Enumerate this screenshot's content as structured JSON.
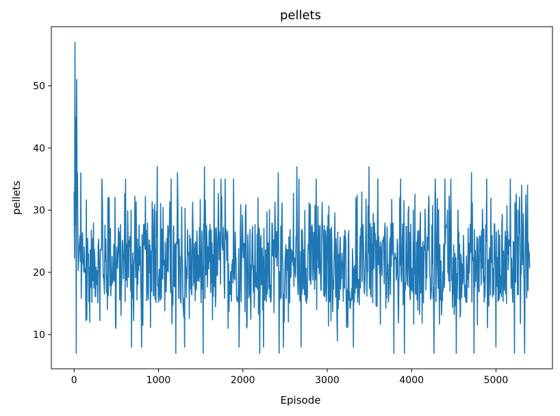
{
  "chart_data": {
    "type": "line",
    "title": "pellets",
    "xlabel": "Episode",
    "ylabel": "pellets",
    "xlim": [
      -270,
      5670
    ],
    "ylim": [
      4.5,
      59.5
    ],
    "xticks": [
      0,
      1000,
      2000,
      3000,
      4000,
      5000
    ],
    "yticks": [
      10,
      20,
      30,
      40,
      50
    ],
    "grid": false,
    "legend": "none",
    "color": "#1f77b4",
    "series": [
      {
        "x_start": 0,
        "x_end": 5400,
        "typical_range": [
          15,
          28
        ],
        "spike_points": [
          [
            0,
            33
          ],
          [
            10,
            57
          ],
          [
            20,
            45
          ],
          [
            30,
            51
          ],
          [
            25,
            7
          ],
          [
            40,
            36
          ],
          [
            80,
            36
          ],
          [
            185,
            12
          ],
          [
            330,
            35
          ],
          [
            400,
            32
          ],
          [
            495,
            11
          ],
          [
            610,
            35
          ],
          [
            680,
            8
          ],
          [
            800,
            8
          ],
          [
            985,
            37
          ],
          [
            1150,
            35
          ],
          [
            1205,
            7
          ],
          [
            1225,
            36
          ],
          [
            1310,
            8
          ],
          [
            1545,
            37
          ],
          [
            1530,
            7
          ],
          [
            1660,
            35
          ],
          [
            1740,
            35
          ],
          [
            1790,
            35
          ],
          [
            1890,
            35
          ],
          [
            1955,
            8
          ],
          [
            2180,
            32
          ],
          [
            2200,
            7
          ],
          [
            2245,
            8
          ],
          [
            2420,
            36
          ],
          [
            2430,
            7
          ],
          [
            2480,
            8
          ],
          [
            2640,
            37
          ],
          [
            2665,
            35
          ],
          [
            2690,
            8
          ],
          [
            2870,
            35
          ],
          [
            3120,
            9
          ],
          [
            3310,
            8
          ],
          [
            3340,
            32
          ],
          [
            3495,
            37
          ],
          [
            3600,
            35
          ],
          [
            3790,
            7
          ],
          [
            3870,
            35
          ],
          [
            3915,
            7
          ],
          [
            4265,
            7
          ],
          [
            4280,
            35
          ],
          [
            4395,
            35
          ],
          [
            4465,
            35
          ],
          [
            4530,
            7
          ],
          [
            4710,
            36
          ],
          [
            4740,
            7
          ],
          [
            4890,
            35
          ],
          [
            5000,
            8
          ],
          [
            5170,
            35
          ],
          [
            5220,
            7
          ],
          [
            5305,
            34
          ],
          [
            5340,
            7
          ],
          [
            5375,
            34
          ]
        ]
      }
    ]
  }
}
